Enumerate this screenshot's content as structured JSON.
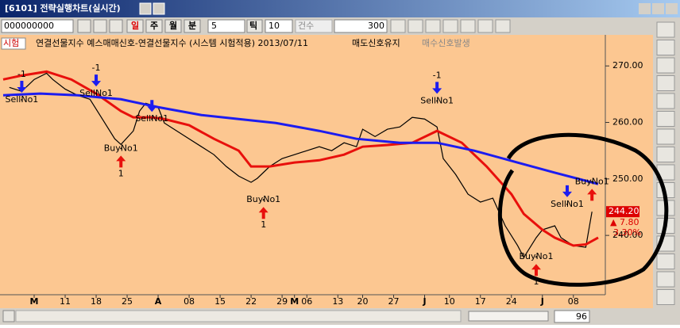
{
  "window": {
    "title": "[6101] 전략실행차트(실시간)"
  },
  "toolbar": {
    "code": "000000000",
    "periods": [
      "일",
      "주",
      "월",
      "분"
    ],
    "minutes": 5,
    "tick_label": "틱",
    "ticks": 10,
    "count_label": "건수",
    "count": 300
  },
  "legend": {
    "tag": "시험",
    "text": "연결선물지수  예스매매신호-연결선물지수 (시스템 시험적용) 2013/07/11",
    "status_sell": "매도신호유지",
    "status_buy": "매수신호발생"
  },
  "chart_data": {
    "type": "line",
    "xlim": [
      0,
      96
    ],
    "xticks": [
      {
        "value": 5,
        "label": "M"
      },
      {
        "value": 10,
        "label": "11"
      },
      {
        "value": 15,
        "label": "18"
      },
      {
        "value": 20,
        "label": "25"
      },
      {
        "value": 25,
        "label": "A"
      },
      {
        "value": 30,
        "label": "08"
      },
      {
        "value": 35,
        "label": "15"
      },
      {
        "value": 40,
        "label": "22"
      },
      {
        "value": 45,
        "label": "29"
      },
      {
        "value": 47,
        "label": "M"
      },
      {
        "value": 49,
        "label": "06"
      },
      {
        "value": 54,
        "label": "13"
      },
      {
        "value": 58,
        "label": "20"
      },
      {
        "value": 63,
        "label": "27"
      },
      {
        "value": 68,
        "label": "J"
      },
      {
        "value": 72,
        "label": "10"
      },
      {
        "value": 77,
        "label": "17"
      },
      {
        "value": 82,
        "label": "24"
      },
      {
        "value": 87,
        "label": "J"
      },
      {
        "value": 92,
        "label": "08"
      }
    ],
    "ylim": [
      229.5,
      275.5
    ],
    "yticks": [
      {
        "value": 240,
        "label": "240.00"
      },
      {
        "value": 250,
        "label": "250.00"
      },
      {
        "value": 260,
        "label": "260.00"
      },
      {
        "value": 270,
        "label": "270.00"
      }
    ],
    "series": [
      {
        "color": "#000000",
        "x": [
          1,
          3,
          5,
          7,
          8,
          10,
          12,
          14,
          16,
          18,
          19,
          21,
          22,
          23,
          25,
          26,
          28,
          30,
          32,
          34,
          36,
          38,
          40,
          41,
          43,
          45,
          47,
          49,
          51,
          53,
          55,
          57,
          58,
          60,
          62,
          64,
          66,
          68,
          70,
          71,
          73,
          75,
          77,
          79,
          81,
          83,
          84,
          86,
          87,
          89,
          90,
          91,
          92,
          94,
          95
        ],
        "values": [
          266.2,
          265.5,
          267.6,
          268.7,
          267.6,
          265.9,
          264.8,
          264.1,
          260.6,
          257.1,
          256.1,
          258.5,
          262.0,
          263.4,
          262.7,
          259.9,
          258.5,
          257.1,
          255.7,
          254.3,
          252.2,
          250.5,
          249.4,
          250.1,
          252.2,
          253.6,
          254.3,
          255.0,
          255.7,
          255.0,
          256.4,
          255.7,
          258.8,
          257.5,
          258.8,
          259.2,
          260.9,
          260.6,
          259.2,
          253.6,
          250.8,
          247.3,
          245.9,
          246.6,
          241.7,
          238.2,
          236.1,
          239.6,
          241.0,
          241.7,
          239.6,
          238.9,
          238.2,
          237.9,
          244.2
        ]
      },
      {
        "color": "#e8100c",
        "x": [
          0,
          3,
          7,
          11,
          15,
          19,
          21,
          24,
          26,
          30,
          34,
          38,
          40,
          43,
          47,
          51,
          55,
          58,
          62,
          66,
          70,
          74,
          78,
          82,
          84,
          87,
          89,
          92,
          94,
          96
        ],
        "values": [
          267.6,
          268.3,
          269.0,
          267.6,
          265.1,
          262.0,
          260.9,
          260.9,
          260.6,
          259.5,
          257.1,
          255.0,
          252.2,
          252.2,
          252.9,
          253.3,
          254.3,
          255.7,
          256.0,
          256.4,
          258.5,
          256.4,
          252.2,
          247.3,
          243.8,
          241.0,
          239.6,
          238.2,
          238.4,
          239.6
        ]
      },
      {
        "color": "#1c1cf0",
        "x": [
          0,
          6,
          12,
          19,
          25,
          32,
          38,
          44,
          51,
          57,
          64,
          70,
          76,
          83,
          89,
          96
        ],
        "values": [
          264.8,
          265.1,
          264.8,
          264.1,
          262.7,
          261.3,
          260.6,
          259.9,
          258.5,
          257.1,
          256.4,
          256.4,
          255.0,
          252.9,
          251.1,
          249.1
        ]
      }
    ],
    "signals": [
      {
        "label": "SellNo1",
        "x": 3,
        "price": 264.0,
        "qty": -1
      },
      {
        "label": "SellNo1",
        "x": 15,
        "price": 265.1,
        "qty": -1
      },
      {
        "label": "BuyNo1",
        "x": 19,
        "price": 255.4,
        "qty": 1
      },
      {
        "label": "SellNo1",
        "x": 24,
        "price": 260.6
      },
      {
        "label": "BuyNo1",
        "x": 42,
        "price": 246.3,
        "qty": 1
      },
      {
        "label": "SellNo1",
        "x": 70,
        "price": 263.8,
        "qty": -1
      },
      {
        "label": "BuyNo1",
        "x": 86,
        "price": 236.2,
        "qty": 1
      },
      {
        "label": "SellNo1",
        "x": 91,
        "price": 245.5
      },
      {
        "label": "BuyNo1",
        "x": 95,
        "price": 249.5
      }
    ],
    "last_price": {
      "value": 244.2,
      "label": "244.20"
    },
    "change": "▲ 7.80",
    "change_pct": "3.30%"
  },
  "scroll": {
    "bars": 96
  }
}
